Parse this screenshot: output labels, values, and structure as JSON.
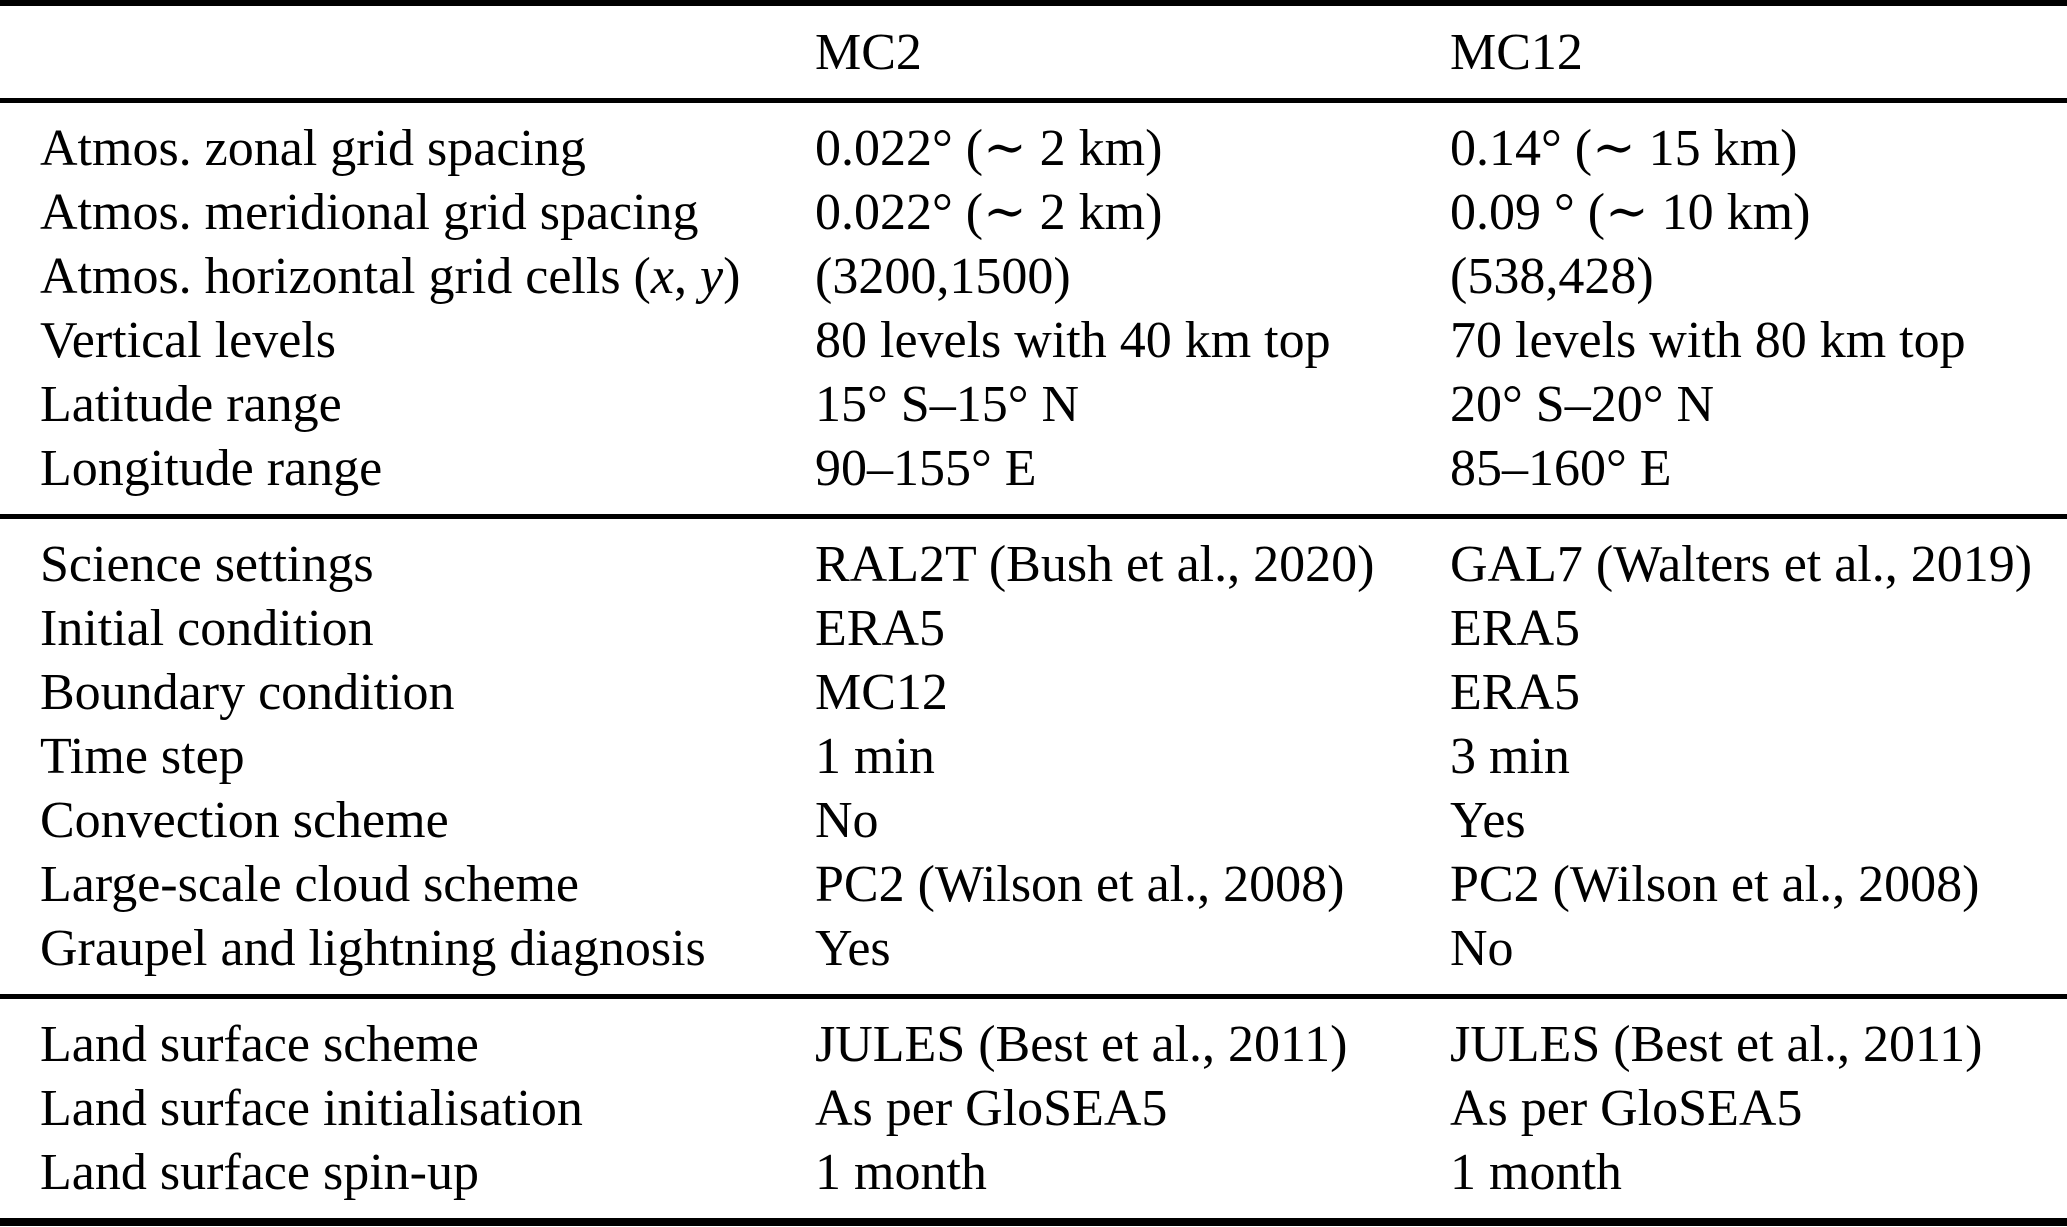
{
  "table": {
    "header": {
      "col0": "",
      "col1": "MC2",
      "col2": "MC12"
    },
    "sections": [
      {
        "name": "grid-configuration",
        "rows": [
          {
            "label": "Atmos. zonal grid spacing",
            "mc2": "0.022° (∼ 2 km)",
            "mc12": "0.14° (∼ 15 km)"
          },
          {
            "label": "Atmos. meridional grid spacing",
            "mc2": "0.022° (∼ 2 km)",
            "mc12": "0.09 ° (∼ 10 km)"
          },
          {
            "label": [
              {
                "t": "Atmos. horizontal grid cells (",
                "i": false
              },
              {
                "t": "x",
                "i": true
              },
              {
                "t": ", ",
                "i": false
              },
              {
                "t": "y",
                "i": true
              },
              {
                "t": ")",
                "i": false
              }
            ],
            "mc2": "(3200,1500)",
            "mc12": "(538,428)"
          },
          {
            "label": "Vertical levels",
            "mc2": "80 levels with 40 km top",
            "mc12": "70 levels with 80 km top"
          },
          {
            "label": "Latitude range",
            "mc2": "15° S–15° N",
            "mc12": "20° S–20° N"
          },
          {
            "label": "Longitude range",
            "mc2": "90–155° E",
            "mc12": "85–160° E"
          }
        ]
      },
      {
        "name": "science-settings",
        "rows": [
          {
            "label": "Science settings",
            "mc2": "RAL2T (Bush et al., 2020)",
            "mc12": "GAL7 (Walters et al., 2019)"
          },
          {
            "label": "Initial condition",
            "mc2": "ERA5",
            "mc12": "ERA5"
          },
          {
            "label": "Boundary condition",
            "mc2": "MC12",
            "mc12": "ERA5"
          },
          {
            "label": "Time step",
            "mc2": "1 min",
            "mc12": "3 min"
          },
          {
            "label": "Convection scheme",
            "mc2": "No",
            "mc12": "Yes"
          },
          {
            "label": "Large-scale cloud scheme",
            "mc2": "PC2 (Wilson et al., 2008)",
            "mc12": "PC2 (Wilson et al., 2008)"
          },
          {
            "label": "Graupel and lightning diagnosis",
            "mc2": "Yes",
            "mc12": "No"
          }
        ]
      },
      {
        "name": "land-surface",
        "rows": [
          {
            "label": "Land surface scheme",
            "mc2": "JULES (Best et al., 2011)",
            "mc12": "JULES (Best et al., 2011)"
          },
          {
            "label": "Land surface initialisation",
            "mc2": "As per GloSEA5",
            "mc12": "As per GloSEA5"
          },
          {
            "label": "Land surface spin-up",
            "mc2": "1 month",
            "mc12": "1 month"
          }
        ]
      }
    ],
    "colors": {
      "text": "#000000",
      "background": "#ffffff",
      "rule": "#000000"
    }
  }
}
